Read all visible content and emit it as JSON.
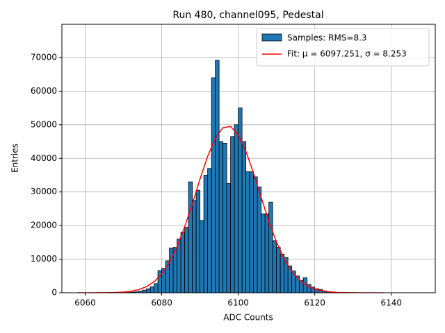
{
  "chart_data": {
    "type": "histogram",
    "title": "Run 480, channel095, Pedestal",
    "x_label": "ADC Counts",
    "y_label": "Entries",
    "name": "Samples: RMS=8.3",
    "color": "#1f77b4",
    "bins": [
      6070,
      6071,
      6072,
      6073,
      6074,
      6075,
      6076,
      6077,
      6078,
      6079,
      6080,
      6081,
      6082,
      6083,
      6084,
      6085,
      6086,
      6087,
      6088,
      6089,
      6090,
      6091,
      6092,
      6093,
      6094,
      6095,
      6096,
      6097,
      6098,
      6099,
      6100,
      6101,
      6102,
      6103,
      6104,
      6105,
      6106,
      6107,
      6108,
      6109,
      6110,
      6111,
      6112,
      6113,
      6114,
      6115,
      6116,
      6117,
      6118,
      6119,
      6120,
      6121,
      6122,
      6123,
      6124
    ],
    "values": [
      50,
      100,
      200,
      300,
      500,
      800,
      1200,
      1800,
      2700,
      6600,
      7300,
      9500,
      13300,
      13500,
      16000,
      18000,
      19500,
      33000,
      27500,
      30500,
      21500,
      35000,
      37000,
      64000,
      69200,
      45000,
      44500,
      32500,
      46500,
      50000,
      55000,
      45000,
      36000,
      36000,
      34500,
      31500,
      23500,
      23500,
      27000,
      15500,
      13500,
      11500,
      10500,
      8000,
      6500,
      5000,
      3700,
      4500,
      2500,
      1700,
      1200,
      1000,
      600,
      300
    ],
    "fit": {
      "name": "Fit: μ = 6097.251, σ = 8.253",
      "color": "#ff0000",
      "x": [
        6058,
        6060,
        6062,
        6064,
        6066,
        6068,
        6070,
        6072,
        6074,
        6076,
        6078,
        6080,
        6082,
        6084,
        6086,
        6088,
        6090,
        6092,
        6094,
        6096,
        6098,
        6100,
        6102,
        6104,
        6106,
        6108,
        6110,
        6112,
        6114,
        6116,
        6118,
        6120,
        6122,
        6124,
        6126,
        6128,
        6130,
        6132,
        6134,
        6136,
        6138
      ],
      "values": [
        1,
        2,
        5,
        15,
        38,
        93,
        213,
        461,
        940,
        1806,
        3276,
        5597,
        9016,
        13697,
        19627,
        26520,
        33781,
        40590,
        45987,
        49134,
        49496,
        47017,
        42121,
        35575,
        28334,
        21287,
        15074,
        10069,
        6342,
        3767,
        2107,
        1113,
        554,
        260,
        115,
        48,
        19,
        7,
        2,
        1,
        0
      ]
    },
    "xlim": [
      6053.9,
      6151.5
    ],
    "ylim": [
      0,
      79900
    ],
    "xticks": [
      6060,
      6080,
      6100,
      6120,
      6140
    ],
    "yticks": [
      0,
      10000,
      20000,
      30000,
      40000,
      50000,
      60000,
      70000
    ],
    "grid": true,
    "legend": "upper right"
  }
}
